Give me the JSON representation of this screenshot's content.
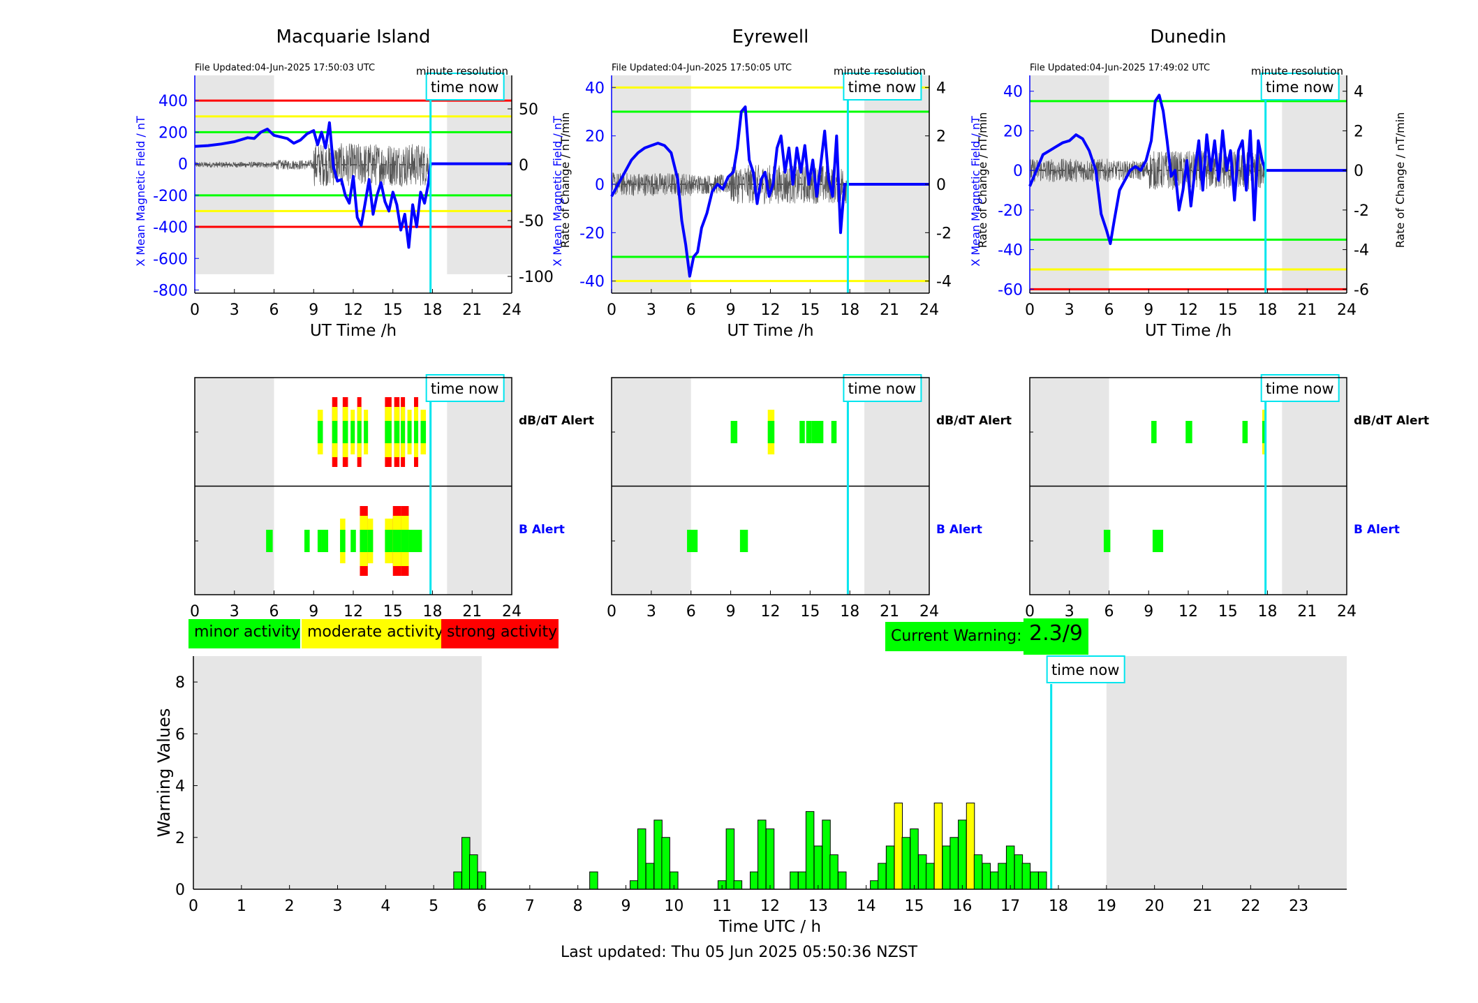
{
  "colors": {
    "minor": "#00ff00",
    "moderate": "#ffff00",
    "strong": "#ff0000",
    "field": "#0000ff",
    "timeNow": "#00e5ee",
    "shade": "#e6e6e6"
  },
  "legend": {
    "minor": "minor activity",
    "moderate": "moderate activity",
    "strong": "strong activity"
  },
  "current_warning": {
    "label": "Current Warning:",
    "value": "2.3/9"
  },
  "footer": "Last updated: Thu 05 Jun 2025 05:50:36 NZST",
  "time_now_label": "time now",
  "alert_rows": {
    "dbdt": "dB/dT Alert",
    "b": "B Alert"
  },
  "chart_data": [
    {
      "type": "line",
      "title": "Macquarie Island",
      "file_updated": "File Updated:04-Jun-2025 17:50:03 UTC",
      "resolution": "minute resolution",
      "xlabel": "UT Time /h",
      "ylabel": "X Mean Magnetic Field / nT",
      "ylabel_right": "Rate of Change / nT/min",
      "xlim": [
        0,
        24
      ],
      "ylim": [
        -820,
        560
      ],
      "ylim_right": [
        -115,
        80
      ],
      "xticks": [
        0,
        3,
        6,
        9,
        12,
        15,
        18,
        21,
        24
      ],
      "yticks": [
        -800,
        -600,
        -400,
        -200,
        0,
        200,
        400
      ],
      "yticks_right": [
        -100,
        -50,
        0,
        50
      ],
      "time_now": 17.85,
      "shaded": [
        [
          0,
          6
        ],
        [
          19.1,
          24
        ]
      ],
      "thresholds": [
        {
          "level": 400,
          "color": "#ff0000"
        },
        {
          "level": 300,
          "color": "#ffff00"
        },
        {
          "level": 200,
          "color": "#00ff00"
        },
        {
          "level": -200,
          "color": "#00ff00"
        },
        {
          "level": -300,
          "color": "#ffff00"
        },
        {
          "level": -400,
          "color": "#ff0000"
        }
      ],
      "field_series": {
        "x": [
          0,
          1,
          2,
          3,
          4,
          4.5,
          5,
          5.5,
          6,
          6.5,
          7,
          7.5,
          8,
          8.5,
          9,
          9.3,
          9.6,
          9.9,
          10.2,
          10.5,
          10.8,
          11.1,
          11.4,
          11.7,
          12,
          12.3,
          12.6,
          12.9,
          13.2,
          13.5,
          13.8,
          14.1,
          14.4,
          14.7,
          15,
          15.3,
          15.6,
          15.9,
          16.2,
          16.5,
          16.8,
          17.1,
          17.4,
          17.7,
          17.85,
          24
        ],
        "y": [
          110,
          115,
          125,
          140,
          165,
          160,
          200,
          220,
          180,
          170,
          160,
          130,
          150,
          190,
          210,
          120,
          200,
          100,
          260,
          -20,
          -110,
          -100,
          -200,
          -250,
          -80,
          -340,
          -390,
          -250,
          -100,
          -320,
          -200,
          -120,
          -240,
          -300,
          -180,
          -260,
          -420,
          -320,
          -530,
          -260,
          -400,
          -180,
          -250,
          -120,
          0,
          0
        ]
      }
    },
    {
      "type": "line",
      "title": "Eyrewell",
      "file_updated": "File Updated:04-Jun-2025 17:50:05 UTC",
      "resolution": "minute resolution",
      "xlabel": "UT Time /h",
      "ylabel": "X Mean Magnetic Field / nT",
      "ylabel_right": "Rate of Change / nT/min",
      "xlim": [
        0,
        24
      ],
      "ylim": [
        -45,
        45
      ],
      "ylim_right": [
        -4.5,
        4.5
      ],
      "xticks": [
        0,
        3,
        6,
        9,
        12,
        15,
        18,
        21,
        24
      ],
      "yticks": [
        -40,
        -20,
        0,
        20,
        40
      ],
      "yticks_right": [
        -4,
        -2,
        0,
        2,
        4
      ],
      "time_now": 17.85,
      "shaded": [
        [
          0,
          6
        ],
        [
          19.1,
          24
        ]
      ],
      "thresholds": [
        {
          "level": 40,
          "color": "#ffff00"
        },
        {
          "level": 30,
          "color": "#00ff00"
        },
        {
          "level": -30,
          "color": "#00ff00"
        },
        {
          "level": -40,
          "color": "#ffff00"
        }
      ],
      "field_series": {
        "x": [
          0,
          0.5,
          1,
          1.5,
          2,
          2.5,
          3,
          3.5,
          4,
          4.5,
          5,
          5.3,
          5.6,
          5.9,
          6.2,
          6.5,
          6.8,
          7.2,
          7.6,
          8,
          8.4,
          8.8,
          9.2,
          9.5,
          9.8,
          10.1,
          10.4,
          10.7,
          11,
          11.3,
          11.6,
          11.9,
          12.2,
          12.5,
          12.8,
          13.1,
          13.4,
          13.7,
          14,
          14.3,
          14.6,
          14.9,
          15.2,
          15.5,
          15.8,
          16.1,
          16.4,
          16.7,
          17,
          17.3,
          17.6,
          17.85,
          24
        ],
        "y": [
          -5,
          0,
          5,
          10,
          13,
          15,
          16,
          17,
          16,
          13,
          2,
          -15,
          -25,
          -38,
          -30,
          -28,
          -18,
          -12,
          -3,
          0,
          -2,
          3,
          5,
          15,
          30,
          32,
          10,
          5,
          -8,
          2,
          5,
          -5,
          0,
          15,
          20,
          5,
          15,
          0,
          15,
          5,
          16,
          0,
          10,
          -5,
          8,
          22,
          2,
          -5,
          20,
          -20,
          0,
          0,
          0
        ]
      }
    },
    {
      "type": "line",
      "title": "Dunedin",
      "file_updated": "File Updated:04-Jun-2025 17:49:02 UTC",
      "resolution": "minute resolution",
      "xlabel": "UT Time /h",
      "ylabel": "X Mean Magnetic Field / nT",
      "ylabel_right": "Rate of Change / nT/min",
      "xlim": [
        0,
        24
      ],
      "ylim": [
        -62,
        48
      ],
      "ylim_right": [
        -6.2,
        4.8
      ],
      "xticks": [
        0,
        3,
        6,
        9,
        12,
        15,
        18,
        21,
        24
      ],
      "yticks": [
        -60,
        -40,
        -20,
        0,
        20,
        40
      ],
      "yticks_right": [
        -6,
        -4,
        -2,
        0,
        2,
        4
      ],
      "time_now": 17.85,
      "shaded": [
        [
          0,
          6
        ],
        [
          19.1,
          24
        ]
      ],
      "thresholds": [
        {
          "level": 35,
          "color": "#00ff00"
        },
        {
          "level": -35,
          "color": "#00ff00"
        },
        {
          "level": -50,
          "color": "#ffff00"
        },
        {
          "level": -60,
          "color": "#ff0000"
        }
      ],
      "field_series": {
        "x": [
          0,
          0.5,
          1,
          1.5,
          2,
          2.5,
          3,
          3.5,
          4,
          4.5,
          5,
          5.4,
          5.8,
          6.1,
          6.4,
          6.8,
          7.2,
          7.6,
          8,
          8.4,
          8.8,
          9.2,
          9.5,
          9.8,
          10.1,
          10.4,
          10.7,
          11,
          11.3,
          11.6,
          11.9,
          12.2,
          12.5,
          12.8,
          13.1,
          13.4,
          13.7,
          14,
          14.3,
          14.6,
          14.9,
          15.2,
          15.5,
          15.8,
          16.1,
          16.4,
          16.7,
          17,
          17.3,
          17.6,
          17.85,
          24
        ],
        "y": [
          -8,
          0,
          8,
          10,
          12,
          14,
          15,
          18,
          16,
          10,
          0,
          -22,
          -30,
          -37,
          -25,
          -10,
          -5,
          0,
          2,
          0,
          5,
          15,
          35,
          38,
          30,
          15,
          -3,
          0,
          -20,
          -10,
          5,
          -18,
          0,
          15,
          -10,
          18,
          0,
          15,
          -5,
          20,
          0,
          10,
          -15,
          10,
          15,
          -10,
          20,
          -25,
          15,
          5,
          0,
          0
        ]
      }
    },
    {
      "type": "bar",
      "ylabel": "Warning Values",
      "xlabel": "Time UTC / h",
      "xlim": [
        0,
        24
      ],
      "ylim": [
        0,
        9
      ],
      "xticks": [
        0,
        1,
        2,
        3,
        4,
        5,
        6,
        7,
        8,
        9,
        10,
        11,
        12,
        13,
        14,
        15,
        16,
        17,
        18,
        19,
        20,
        21,
        22,
        23
      ],
      "yticks": [
        0,
        2,
        4,
        6,
        8
      ],
      "time_now": 17.85,
      "shaded": [
        [
          0,
          6
        ],
        [
          19,
          24
        ]
      ],
      "bar_width_h": 0.1667,
      "bars": [
        [
          5.5,
          0.67,
          "minor"
        ],
        [
          5.67,
          2.0,
          "minor"
        ],
        [
          5.83,
          1.33,
          "minor"
        ],
        [
          6.0,
          0.67,
          "minor"
        ],
        [
          8.33,
          0.67,
          "minor"
        ],
        [
          9.17,
          0.33,
          "minor"
        ],
        [
          9.33,
          2.33,
          "minor"
        ],
        [
          9.5,
          1.0,
          "minor"
        ],
        [
          9.67,
          2.67,
          "minor"
        ],
        [
          9.83,
          2.0,
          "minor"
        ],
        [
          10.0,
          0.67,
          "minor"
        ],
        [
          11.0,
          0.33,
          "minor"
        ],
        [
          11.17,
          2.33,
          "minor"
        ],
        [
          11.33,
          0.33,
          "minor"
        ],
        [
          11.67,
          0.67,
          "minor"
        ],
        [
          11.83,
          2.67,
          "minor"
        ],
        [
          12.0,
          2.33,
          "minor"
        ],
        [
          12.5,
          0.67,
          "minor"
        ],
        [
          12.67,
          0.67,
          "minor"
        ],
        [
          12.83,
          3.0,
          "minor"
        ],
        [
          13.0,
          1.67,
          "minor"
        ],
        [
          13.17,
          2.67,
          "minor"
        ],
        [
          13.33,
          1.33,
          "minor"
        ],
        [
          13.5,
          0.67,
          "minor"
        ],
        [
          14.17,
          0.33,
          "minor"
        ],
        [
          14.33,
          1.0,
          "minor"
        ],
        [
          14.5,
          1.67,
          "minor"
        ],
        [
          14.67,
          3.33,
          "moderate"
        ],
        [
          14.83,
          2.0,
          "minor"
        ],
        [
          15.0,
          2.33,
          "minor"
        ],
        [
          15.17,
          1.33,
          "minor"
        ],
        [
          15.33,
          1.0,
          "minor"
        ],
        [
          15.5,
          3.33,
          "moderate"
        ],
        [
          15.67,
          1.67,
          "minor"
        ],
        [
          15.83,
          2.0,
          "minor"
        ],
        [
          16.0,
          2.67,
          "minor"
        ],
        [
          16.17,
          3.33,
          "moderate"
        ],
        [
          16.33,
          1.33,
          "minor"
        ],
        [
          16.5,
          1.0,
          "minor"
        ],
        [
          16.67,
          0.67,
          "minor"
        ],
        [
          16.83,
          1.0,
          "minor"
        ],
        [
          17.0,
          1.67,
          "minor"
        ],
        [
          17.17,
          1.33,
          "minor"
        ],
        [
          17.33,
          1.0,
          "minor"
        ],
        [
          17.5,
          0.67,
          "minor"
        ],
        [
          17.67,
          0.67,
          "minor"
        ]
      ]
    }
  ],
  "alert_panels": [
    {
      "xlim": [
        0,
        24
      ],
      "xticks": [
        0,
        3,
        6,
        9,
        12,
        15,
        18,
        21,
        24
      ],
      "time_now": 17.85,
      "shaded": [
        [
          0,
          6
        ],
        [
          19.1,
          24
        ]
      ],
      "dbdt": [
        [
          9.3,
          0.4,
          "moderate"
        ],
        [
          10.4,
          0.4,
          "strong"
        ],
        [
          11.2,
          0.4,
          "strong"
        ],
        [
          11.8,
          0.3,
          "moderate"
        ],
        [
          12.3,
          0.3,
          "strong"
        ],
        [
          12.8,
          0.3,
          "moderate"
        ],
        [
          14.4,
          0.5,
          "strong"
        ],
        [
          15.1,
          0.4,
          "strong"
        ],
        [
          15.6,
          0.3,
          "strong"
        ],
        [
          16.1,
          0.3,
          "moderate"
        ],
        [
          16.6,
          0.3,
          "strong"
        ],
        [
          17.1,
          0.4,
          "moderate"
        ]
      ],
      "b": [
        [
          5.4,
          0.5,
          "minor"
        ],
        [
          8.3,
          0.4,
          "minor"
        ],
        [
          9.3,
          0.3,
          "minor"
        ],
        [
          9.6,
          0.5,
          "minor"
        ],
        [
          11.0,
          0.4,
          "moderate"
        ],
        [
          11.8,
          0.4,
          "minor"
        ],
        [
          12.5,
          0.6,
          "strong"
        ],
        [
          13.1,
          0.4,
          "moderate"
        ],
        [
          14.4,
          0.6,
          "moderate"
        ],
        [
          15.0,
          0.6,
          "strong"
        ],
        [
          15.6,
          0.6,
          "strong"
        ],
        [
          16.2,
          1.0,
          "minor"
        ]
      ]
    },
    {
      "xlim": [
        0,
        24
      ],
      "xticks": [
        0,
        3,
        6,
        9,
        12,
        15,
        18,
        21,
        24
      ],
      "time_now": 17.85,
      "shaded": [
        [
          0,
          6
        ],
        [
          19.1,
          24
        ]
      ],
      "dbdt": [
        [
          9.0,
          0.5,
          "minor"
        ],
        [
          11.8,
          0.5,
          "moderate"
        ],
        [
          14.2,
          0.4,
          "minor"
        ],
        [
          14.7,
          0.4,
          "minor"
        ],
        [
          15.1,
          0.9,
          "minor"
        ],
        [
          16.6,
          0.4,
          "minor"
        ]
      ],
      "b": [
        [
          5.7,
          0.8,
          "minor"
        ],
        [
          9.7,
          0.6,
          "minor"
        ]
      ]
    },
    {
      "xlim": [
        0,
        24
      ],
      "xticks": [
        0,
        3,
        6,
        9,
        12,
        15,
        18,
        21,
        24
      ],
      "time_now": 17.85,
      "shaded": [
        [
          0,
          6
        ],
        [
          19.1,
          24
        ]
      ],
      "dbdt": [
        [
          9.2,
          0.4,
          "minor"
        ],
        [
          11.8,
          0.5,
          "minor"
        ],
        [
          16.1,
          0.4,
          "minor"
        ],
        [
          17.6,
          0.3,
          "moderate"
        ]
      ],
      "b": [
        [
          5.6,
          0.5,
          "minor"
        ],
        [
          9.3,
          0.8,
          "minor"
        ]
      ]
    }
  ]
}
